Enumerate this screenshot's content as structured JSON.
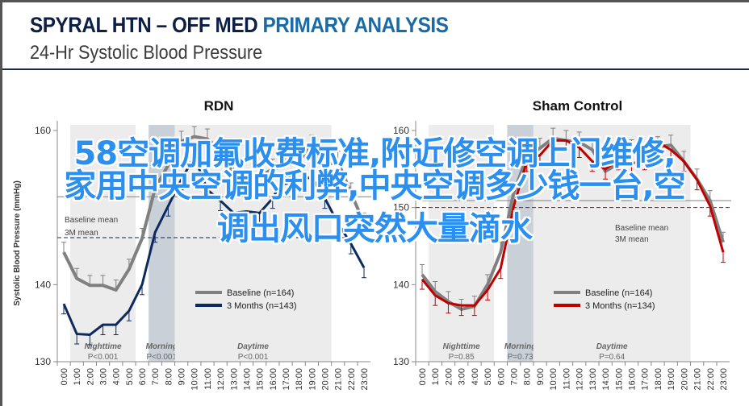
{
  "header": {
    "title_main": "SPYRAL HTN – OFF MED",
    "title_accent": "PRIMARY ANALYSIS",
    "subtitle": "24-Hr Systolic Blood Pressure"
  },
  "colors": {
    "accent": "#1a6aa6",
    "navy": "#0d2a5c",
    "gray": "#808080",
    "red": "#c00000",
    "shade": "#ececec",
    "morning": "#c9d0d8"
  },
  "watermark": {
    "lines": [
      "58空调加氟收费标准,附近修空调上门维修,",
      "家用中央空调的利弊,中央空调多少钱一台,空",
      "调出风口突然大量滴水"
    ]
  },
  "chart_data": [
    {
      "type": "line",
      "title": "RDN",
      "ylabel": "Systolic Blood Pressure (mmHg)",
      "ylim": [
        130,
        160
      ],
      "yticks": [
        130,
        140,
        160
      ],
      "x": [
        "0:00",
        "1:00",
        "2:00",
        "3:00",
        "4:00",
        "5:00",
        "6:00",
        "7:00",
        "8:00",
        "9:00",
        "10:00",
        "11:00",
        "12:00",
        "13:00",
        "14:00",
        "15:00",
        "16:00",
        "17:00",
        "18:00",
        "19:00",
        "20:00",
        "21:00",
        "22:00",
        "23:00"
      ],
      "periods": [
        {
          "label": "Nighttime",
          "p": "P<0.001",
          "range": [
            0.5,
            5.5
          ],
          "kind": "shade"
        },
        {
          "label": "Morning",
          "p": "P<0.001",
          "range": [
            6.5,
            8.5
          ],
          "kind": "morning"
        },
        {
          "label": "Daytime",
          "p": "P<0.001",
          "range": [
            8.5,
            20.5
          ],
          "kind": "shade"
        }
      ],
      "means": [
        {
          "label": "Baseline mean",
          "value": 151.4,
          "color": "#808080",
          "dashed": false
        },
        {
          "label": "3M mean",
          "value": 146.1,
          "color": "#0d2a5c",
          "dashed": true
        }
      ],
      "series": [
        {
          "name": "Baseline (n=164)",
          "color": "#808080",
          "values": [
            144.2,
            140.8,
            139.9,
            139.9,
            139.3,
            142,
            146,
            152.5,
            155.5,
            158.6,
            159.2,
            158.9,
            157.5,
            154.3,
            153.6,
            154,
            155,
            155.4,
            156,
            158.1,
            155.4,
            156,
            151.9,
            148
          ]
        },
        {
          "name": "3 Months (n=143)",
          "color": "#0d2a5c",
          "values": [
            137.5,
            133.6,
            133.5,
            134.8,
            134.8,
            136.6,
            140,
            146.8,
            150.2,
            153.6,
            156.6,
            152.3,
            150.9,
            149.3,
            149.5,
            149.3,
            151.2,
            154.3,
            153.4,
            154,
            151.2,
            148,
            145.3,
            142.2
          ]
        }
      ]
    },
    {
      "type": "line",
      "title": "Sham Control",
      "ylabel": "",
      "ylim": [
        130,
        160
      ],
      "yticks": [
        130,
        140,
        150,
        160
      ],
      "x": [
        "0:00",
        "1:00",
        "2:00",
        "3:00",
        "4:00",
        "5:00",
        "6:00",
        "7:00",
        "8:00",
        "9:00",
        "10:00",
        "11:00",
        "12:00",
        "13:00",
        "14:00",
        "15:00",
        "16:00",
        "17:00",
        "18:00",
        "19:00",
        "20:00",
        "21:00",
        "22:00",
        "23:00"
      ],
      "periods": [
        {
          "label": "Nighttime",
          "p": "P=0.85",
          "range": [
            0.5,
            5.5
          ],
          "kind": "shade"
        },
        {
          "label": "Morning",
          "p": "P=0.73",
          "range": [
            6.5,
            8.5
          ],
          "kind": "morning"
        },
        {
          "label": "Daytime",
          "p": "P=0.64",
          "range": [
            8.5,
            20.5
          ],
          "kind": "shade"
        }
      ],
      "means": [
        {
          "label": "Baseline mean",
          "value": 150.9,
          "color": "#808080",
          "dashed": false
        },
        {
          "label": "3M mean",
          "value": 150.0,
          "color": "#c00000",
          "dashed": true
        }
      ],
      "series": [
        {
          "name": "Baseline (n=164)",
          "color": "#808080",
          "values": [
            141.3,
            139.1,
            137.8,
            136.8,
            137.2,
            140,
            144.2,
            151.9,
            156.6,
            157.7,
            159,
            158.7,
            158.5,
            157.5,
            154.7,
            155.7,
            157.5,
            156,
            157.9,
            158.1,
            156,
            153.7,
            150.9,
            145.5
          ]
        },
        {
          "name": "3 Months (n=134)",
          "color": "#c00000",
          "values": [
            140.7,
            138.6,
            137.6,
            137.3,
            137.3,
            139.3,
            142.1,
            150.2,
            156,
            156.8,
            158.7,
            158.7,
            157.8,
            156,
            155,
            156.2,
            155.7,
            156.2,
            158.5,
            157.5,
            156,
            153.6,
            150.2,
            144.2
          ]
        }
      ]
    }
  ]
}
